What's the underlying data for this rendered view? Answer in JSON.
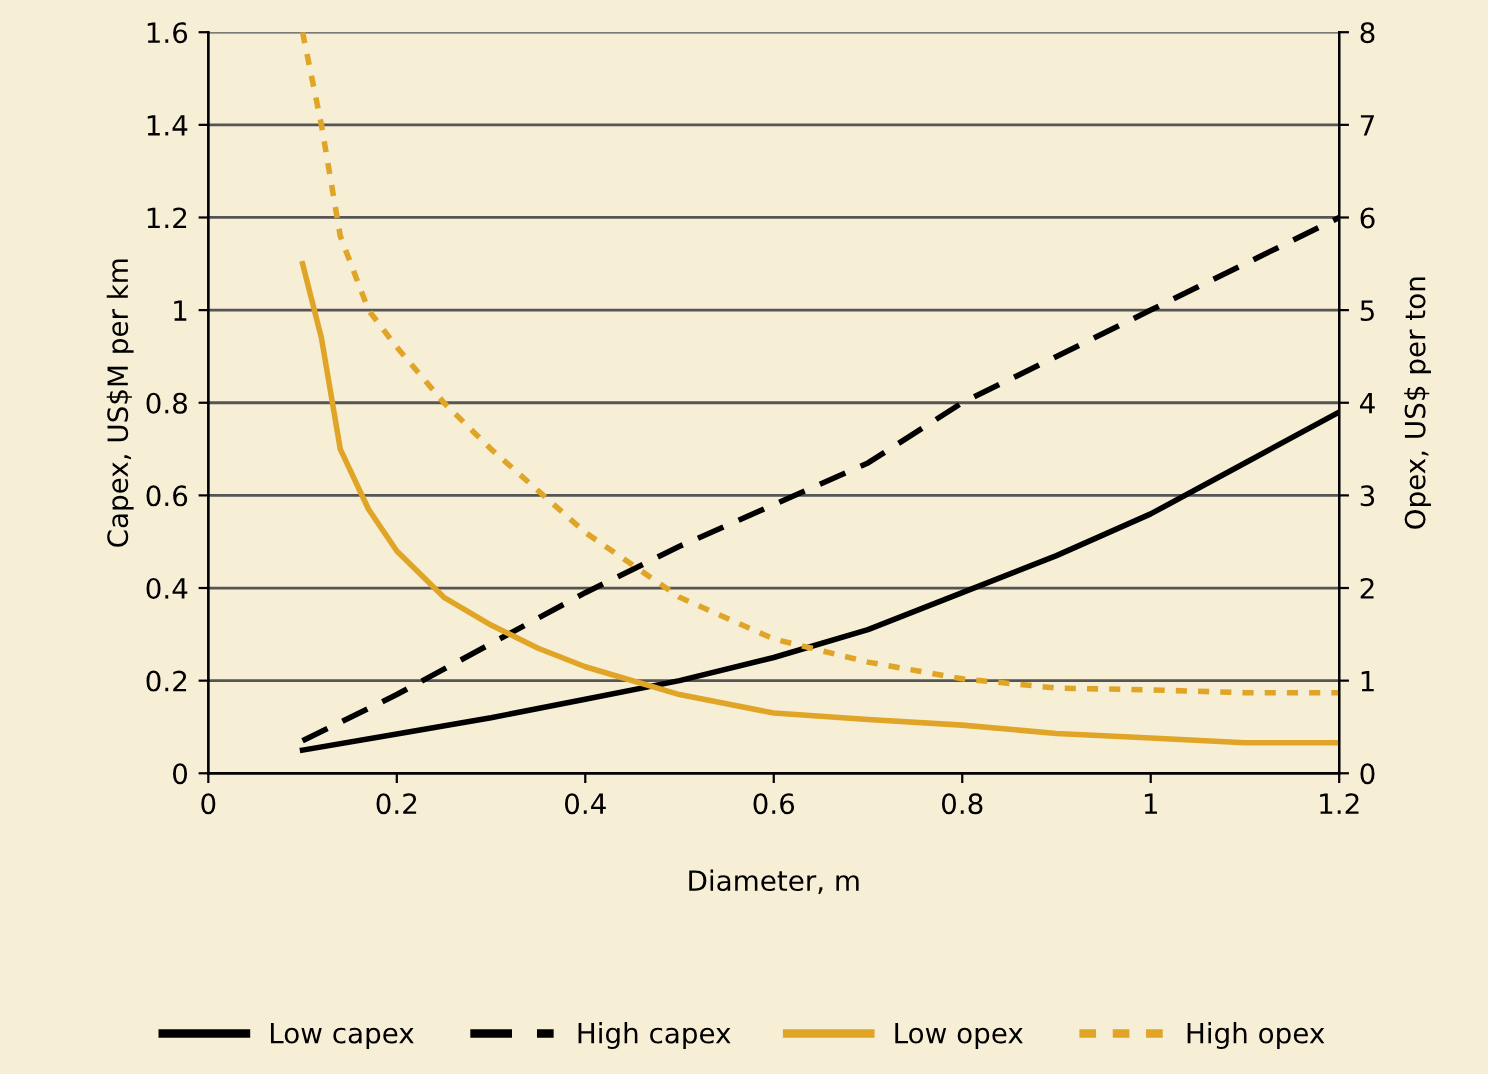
{
  "chart_data": {
    "type": "line",
    "xlabel": "Diameter, m",
    "ylabel": "Capex, US$M per km",
    "y2label": "Opex, US$ per ton",
    "xlim": [
      0,
      1.2
    ],
    "xticks": [
      0,
      0.2,
      0.4,
      0.6,
      0.8,
      1,
      1.2
    ],
    "ylim": [
      0,
      1.6
    ],
    "yticks": [
      0,
      0.2,
      0.4,
      0.6,
      0.8,
      1,
      1.2,
      1.4,
      1.6
    ],
    "y2lim": [
      0,
      8
    ],
    "y2ticks": [
      0,
      1,
      2,
      3,
      4,
      5,
      6,
      7,
      8
    ],
    "grid": "y",
    "legend": "bottom",
    "series": [
      {
        "name": "Low capex",
        "color": "#000000",
        "line_style": "solid",
        "x": [
          0.1,
          0.2,
          0.3,
          0.4,
          0.5,
          0.6,
          0.7,
          0.8,
          0.9,
          1.0,
          1.1,
          1.2
        ],
        "values": [
          0.05,
          0.085,
          0.12,
          0.16,
          0.2,
          0.25,
          0.31,
          0.39,
          0.47,
          0.56,
          0.67,
          0.78
        ]
      },
      {
        "name": "High capex",
        "color": "#000000",
        "line_style": "dashed",
        "x": [
          0.1,
          0.2,
          0.3,
          0.4,
          0.5,
          0.6,
          0.7,
          0.8,
          0.9,
          1.0,
          1.1,
          1.2
        ],
        "values": [
          0.07,
          0.17,
          0.28,
          0.39,
          0.49,
          0.58,
          0.67,
          0.8,
          0.9,
          1.0,
          1.1,
          1.2
        ]
      },
      {
        "name": "Low opex",
        "color": "#e0a526",
        "line_style": "solid",
        "axis": "y2",
        "x": [
          0.1,
          0.12,
          0.14,
          0.17,
          0.2,
          0.25,
          0.3,
          0.35,
          0.4,
          0.5,
          0.6,
          0.7,
          0.8,
          0.9,
          1.0,
          1.1,
          1.2
        ],
        "values": [
          5.5,
          4.7,
          3.5,
          2.85,
          2.4,
          1.9,
          1.6,
          1.35,
          1.15,
          0.85,
          0.65,
          0.58,
          0.52,
          0.43,
          0.38,
          0.33,
          0.33
        ]
      },
      {
        "name": "High opex",
        "color": "#e0a526",
        "line_style": "dotted",
        "axis": "y2",
        "x": [
          0.1,
          0.12,
          0.14,
          0.17,
          0.2,
          0.25,
          0.3,
          0.4,
          0.5,
          0.6,
          0.7,
          0.8,
          0.9,
          1.0,
          1.1,
          1.2
        ],
        "values": [
          8.0,
          7.0,
          5.8,
          5.0,
          4.6,
          4.0,
          3.5,
          2.6,
          1.9,
          1.45,
          1.2,
          1.02,
          0.92,
          0.9,
          0.87,
          0.87
        ]
      }
    ]
  }
}
